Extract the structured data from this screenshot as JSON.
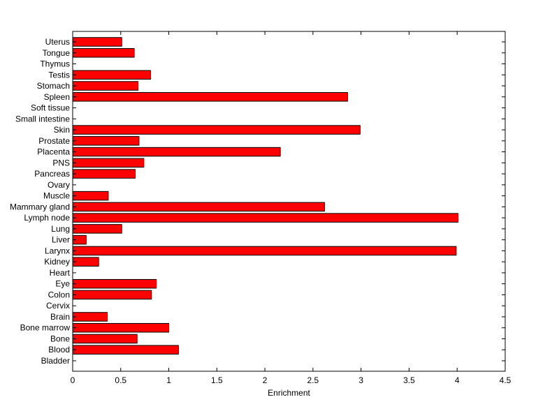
{
  "chart_data": {
    "type": "bar",
    "orientation": "horizontal",
    "title": "",
    "xlabel": "Enrichment",
    "ylabel": "",
    "xlim": [
      0,
      4.5
    ],
    "xticks": [
      "0",
      "0.5",
      "1",
      "1.5",
      "2",
      "2.5",
      "3",
      "3.5",
      "4",
      "4.5"
    ],
    "xtick_values": [
      0,
      0.5,
      1,
      1.5,
      2,
      2.5,
      3,
      3.5,
      4,
      4.5
    ],
    "grid": false,
    "legend": "none",
    "bar_color": "#ff0000",
    "bar_edge_color": "#000000",
    "categories": [
      "Bladder",
      "Blood",
      "Bone",
      "Bone marrow",
      "Brain",
      "Cervix",
      "Colon",
      "Eye",
      "Heart",
      "Kidney",
      "Larynx",
      "Liver",
      "Lung",
      "Lymph node",
      "Mammary gland",
      "Muscle",
      "Ovary",
      "Pancreas",
      "PNS",
      "Placenta",
      "Prostate",
      "Skin",
      "Small intestine",
      "Soft tissue",
      "Spleen",
      "Stomach",
      "Testis",
      "Thymus",
      "Tongue",
      "Uterus"
    ],
    "values": [
      0,
      1.1,
      0.67,
      1.0,
      0.36,
      0,
      0.82,
      0.87,
      0,
      0.27,
      3.99,
      0.14,
      0.51,
      4.01,
      2.62,
      0.37,
      0,
      0.65,
      0.74,
      2.16,
      0.69,
      2.99,
      0,
      0,
      2.86,
      0.68,
      0.81,
      0,
      0.64,
      0.51
    ]
  }
}
